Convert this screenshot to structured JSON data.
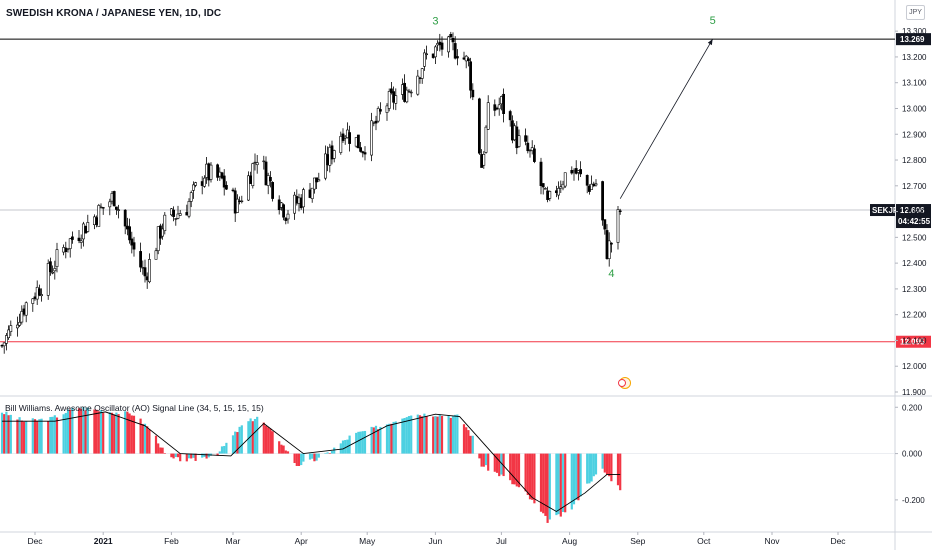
{
  "title": "SWEDISH KRONA / JAPANESE YEN, 1D, IDC",
  "currency_button": "JPY",
  "symbol": "SEKJPY",
  "last_price": "12.606",
  "countdown": "04:42:55",
  "indicator_title": "Bill Williams. Awesome Oscillator (AO) Signal Line (34, 5, 15, 15, 15)",
  "colors": {
    "bull_candle": "#ffffff",
    "bear_candle": "#000000",
    "ao_up": "#4dd0e1",
    "ao_down": "#f23645",
    "signal_line": "#000000",
    "support_line": "#f23645",
    "resistance_line": "#000000",
    "wave_label": "#2e9e45"
  },
  "chart_data": [
    {
      "type": "candlestick",
      "y_ticks": [
        "13.300",
        "13.200",
        "13.100",
        "13.000",
        "12.900",
        "12.800",
        "12.700",
        "12.600",
        "12.500",
        "12.400",
        "12.300",
        "12.200",
        "12.100",
        "12.000",
        "11.900"
      ],
      "ylim": [
        11.9,
        13.32
      ],
      "x_ticks": [
        "Dec",
        "2021",
        "Feb",
        "Mar",
        "Apr",
        "May",
        "Jun",
        "Jul",
        "Aug",
        "Sep",
        "Oct",
        "Nov",
        "Dec"
      ],
      "horizontal_lines": [
        {
          "label": "13.269",
          "value": 13.269,
          "style": "resistance"
        },
        {
          "label": "12.095",
          "value": 12.095,
          "style": "support"
        },
        {
          "label": "12.606",
          "value": 12.606,
          "style": "last_price"
        }
      ],
      "wave_labels": [
        {
          "text": "3",
          "date": "2021-06-01",
          "price": 13.29
        },
        {
          "text": "4",
          "date": "2021-08-20",
          "price": 12.4
        },
        {
          "text": "5",
          "date": "2021-10-05",
          "price": 13.27
        }
      ],
      "projection": {
        "from": {
          "date": "2021-08-24",
          "price": 12.65
        },
        "to": {
          "date": "2021-10-05",
          "price": 13.269
        }
      },
      "close_path": [
        {
          "date": "2020-11-16",
          "price": 12.08
        },
        {
          "date": "2020-11-25",
          "price": 12.22
        },
        {
          "date": "2020-12-05",
          "price": 12.33
        },
        {
          "date": "2020-12-15",
          "price": 12.47
        },
        {
          "date": "2020-12-28",
          "price": 12.58
        },
        {
          "date": "2021-01-06",
          "price": 12.66
        },
        {
          "date": "2021-01-14",
          "price": 12.47
        },
        {
          "date": "2021-01-20",
          "price": 12.35
        },
        {
          "date": "2021-01-28",
          "price": 12.55
        },
        {
          "date": "2021-02-08",
          "price": 12.62
        },
        {
          "date": "2021-02-16",
          "price": 12.75
        },
        {
          "date": "2021-02-24",
          "price": 12.72
        },
        {
          "date": "2021-03-03",
          "price": 12.62
        },
        {
          "date": "2021-03-12",
          "price": 12.82
        },
        {
          "date": "2021-03-18",
          "price": 12.71
        },
        {
          "date": "2021-03-25",
          "price": 12.6
        },
        {
          "date": "2021-04-01",
          "price": 12.65
        },
        {
          "date": "2021-04-09",
          "price": 12.73
        },
        {
          "date": "2021-04-20",
          "price": 12.92
        },
        {
          "date": "2021-04-29",
          "price": 12.85
        },
        {
          "date": "2021-05-10",
          "price": 13.02
        },
        {
          "date": "2021-05-20",
          "price": 13.08
        },
        {
          "date": "2021-05-28",
          "price": 13.2
        },
        {
          "date": "2021-06-03",
          "price": 13.24
        },
        {
          "date": "2021-06-11",
          "price": 13.23
        },
        {
          "date": "2021-06-16",
          "price": 13.17
        },
        {
          "date": "2021-06-22",
          "price": 12.78
        },
        {
          "date": "2021-06-25",
          "price": 12.98
        },
        {
          "date": "2021-07-01",
          "price": 13.02
        },
        {
          "date": "2021-07-08",
          "price": 12.88
        },
        {
          "date": "2021-07-15",
          "price": 12.81
        },
        {
          "date": "2021-07-22",
          "price": 12.62
        },
        {
          "date": "2021-07-27",
          "price": 12.71
        },
        {
          "date": "2021-08-02",
          "price": 12.77
        },
        {
          "date": "2021-08-09",
          "price": 12.7
        },
        {
          "date": "2021-08-13",
          "price": 12.71
        },
        {
          "date": "2021-08-18",
          "price": 12.45
        },
        {
          "date": "2021-08-20",
          "price": 12.48
        },
        {
          "date": "2021-08-24",
          "price": 12.606
        }
      ]
    },
    {
      "type": "bar",
      "title": "Bill Williams. Awesome Oscillator (AO) Signal Line (34, 5, 15, 15, 15)",
      "y_ticks": [
        "0.200",
        "0.000",
        "-0.200"
      ],
      "ylim": [
        -0.33,
        0.24
      ],
      "ao_path": [
        {
          "date": "2020-11-16",
          "value": 0.18
        },
        {
          "date": "2020-11-26",
          "value": 0.14
        },
        {
          "date": "2020-12-08",
          "value": 0.15
        },
        {
          "date": "2020-12-20",
          "value": 0.2
        },
        {
          "date": "2021-01-05",
          "value": 0.18
        },
        {
          "date": "2021-01-15",
          "value": 0.17
        },
        {
          "date": "2021-01-24",
          "value": 0.09
        },
        {
          "date": "2021-01-30",
          "value": -0.02
        },
        {
          "date": "2021-02-10",
          "value": -0.03
        },
        {
          "date": "2021-02-22",
          "value": 0.0
        },
        {
          "date": "2021-03-05",
          "value": 0.12
        },
        {
          "date": "2021-03-12",
          "value": 0.16
        },
        {
          "date": "2021-03-22",
          "value": 0.06
        },
        {
          "date": "2021-03-30",
          "value": -0.05
        },
        {
          "date": "2021-04-10",
          "value": -0.02
        },
        {
          "date": "2021-04-24",
          "value": 0.08
        },
        {
          "date": "2021-05-08",
          "value": 0.12
        },
        {
          "date": "2021-05-20",
          "value": 0.17
        },
        {
          "date": "2021-06-01",
          "value": 0.17
        },
        {
          "date": "2021-06-12",
          "value": 0.16
        },
        {
          "date": "2021-06-18",
          "value": 0.07
        },
        {
          "date": "2021-06-22",
          "value": -0.05
        },
        {
          "date": "2021-07-02",
          "value": -0.1
        },
        {
          "date": "2021-07-12",
          "value": -0.17
        },
        {
          "date": "2021-07-22",
          "value": -0.29
        },
        {
          "date": "2021-08-01",
          "value": -0.25
        },
        {
          "date": "2021-08-10",
          "value": -0.12
        },
        {
          "date": "2021-08-16",
          "value": -0.07
        },
        {
          "date": "2021-08-24",
          "value": -0.15
        }
      ],
      "signal_path": [
        {
          "date": "2020-11-16",
          "value": 0.14
        },
        {
          "date": "2020-12-10",
          "value": 0.14
        },
        {
          "date": "2021-01-02",
          "value": 0.18
        },
        {
          "date": "2021-01-20",
          "value": 0.12
        },
        {
          "date": "2021-02-05",
          "value": 0.0
        },
        {
          "date": "2021-02-28",
          "value": -0.01
        },
        {
          "date": "2021-03-15",
          "value": 0.13
        },
        {
          "date": "2021-04-02",
          "value": 0.0
        },
        {
          "date": "2021-04-20",
          "value": 0.02
        },
        {
          "date": "2021-05-10",
          "value": 0.12
        },
        {
          "date": "2021-06-01",
          "value": 0.17
        },
        {
          "date": "2021-06-12",
          "value": 0.16
        },
        {
          "date": "2021-06-28",
          "value": -0.01
        },
        {
          "date": "2021-07-15",
          "value": -0.19
        },
        {
          "date": "2021-07-26",
          "value": -0.25
        },
        {
          "date": "2021-08-08",
          "value": -0.17
        },
        {
          "date": "2021-08-18",
          "value": -0.09
        },
        {
          "date": "2021-08-24",
          "value": -0.09
        }
      ]
    }
  ]
}
